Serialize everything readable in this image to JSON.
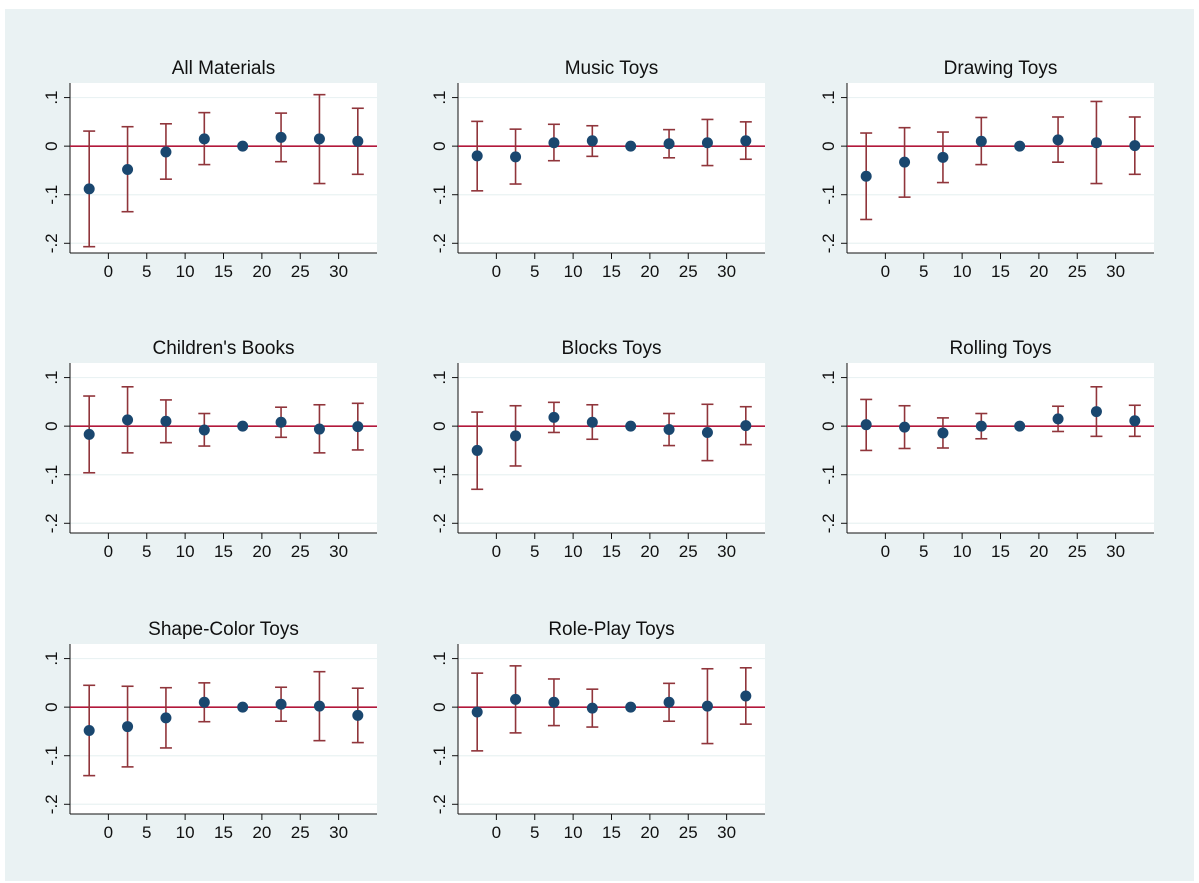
{
  "colors": {
    "background": "#eaf2f3",
    "plot_area": "#ffffff",
    "marker": "#1a476f",
    "error_bar": "#90353b",
    "zero_line": "#b2183b",
    "grid": "#eaf2f3"
  },
  "chart_data": [
    {
      "type": "scatter",
      "title": "All Materials",
      "x": [
        -2.5,
        2.5,
        7.5,
        12.5,
        17.5,
        22.5,
        27.5,
        32.5
      ],
      "y": [
        -0.088,
        -0.048,
        -0.012,
        0.015,
        0.0,
        0.018,
        0.015,
        0.01
      ],
      "ci_low": [
        -0.207,
        -0.135,
        -0.068,
        -0.038,
        0.0,
        -0.032,
        -0.077,
        -0.058
      ],
      "ci_high": [
        0.031,
        0.04,
        0.046,
        0.069,
        0.0,
        0.068,
        0.106,
        0.078
      ],
      "xlim": [
        -5,
        35
      ],
      "ylim": [
        -0.22,
        0.13
      ],
      "xticks": [
        "0",
        "5",
        "10",
        "15",
        "20",
        "25",
        "30"
      ],
      "yticks": [
        "-.2",
        "-.1",
        "0",
        ".1"
      ],
      "zero_line": true,
      "grid": true
    },
    {
      "type": "scatter",
      "title": "Music Toys",
      "x": [
        -2.5,
        2.5,
        7.5,
        12.5,
        17.5,
        22.5,
        27.5,
        32.5
      ],
      "y": [
        -0.02,
        -0.022,
        0.007,
        0.011,
        0.0,
        0.005,
        0.007,
        0.011
      ],
      "ci_low": [
        -0.092,
        -0.078,
        -0.03,
        -0.021,
        0.0,
        -0.024,
        -0.04,
        -0.027
      ],
      "ci_high": [
        0.051,
        0.035,
        0.045,
        0.042,
        0.0,
        0.034,
        0.055,
        0.05
      ],
      "xlim": [
        -5,
        35
      ],
      "ylim": [
        -0.22,
        0.13
      ],
      "xticks": [
        "0",
        "5",
        "10",
        "15",
        "20",
        "25",
        "30"
      ],
      "yticks": [
        "-.2",
        "-.1",
        "0",
        ".1"
      ],
      "zero_line": true,
      "grid": true
    },
    {
      "type": "scatter",
      "title": "Drawing Toys",
      "x": [
        -2.5,
        2.5,
        7.5,
        12.5,
        17.5,
        22.5,
        27.5,
        32.5
      ],
      "y": [
        -0.062,
        -0.033,
        -0.023,
        0.01,
        0.0,
        0.013,
        0.007,
        0.001
      ],
      "ci_low": [
        -0.151,
        -0.105,
        -0.075,
        -0.038,
        0.0,
        -0.033,
        -0.077,
        -0.058
      ],
      "ci_high": [
        0.027,
        0.038,
        0.029,
        0.059,
        0.0,
        0.06,
        0.092,
        0.06
      ],
      "xlim": [
        -5,
        35
      ],
      "ylim": [
        -0.22,
        0.13
      ],
      "xticks": [
        "0",
        "5",
        "10",
        "15",
        "20",
        "25",
        "30"
      ],
      "yticks": [
        "-.2",
        "-.1",
        "0",
        ".1"
      ],
      "zero_line": true,
      "grid": true
    },
    {
      "type": "scatter",
      "title": "Children's Books",
      "x": [
        -2.5,
        2.5,
        7.5,
        12.5,
        17.5,
        22.5,
        27.5,
        32.5
      ],
      "y": [
        -0.017,
        0.013,
        0.01,
        -0.008,
        0.0,
        0.008,
        -0.006,
        -0.001
      ],
      "ci_low": [
        -0.096,
        -0.055,
        -0.034,
        -0.041,
        0.0,
        -0.023,
        -0.055,
        -0.049
      ],
      "ci_high": [
        0.062,
        0.081,
        0.054,
        0.026,
        0.0,
        0.039,
        0.044,
        0.047
      ],
      "xlim": [
        -5,
        35
      ],
      "ylim": [
        -0.22,
        0.13
      ],
      "xticks": [
        "0",
        "5",
        "10",
        "15",
        "20",
        "25",
        "30"
      ],
      "yticks": [
        "-.2",
        "-.1",
        "0",
        ".1"
      ],
      "zero_line": true,
      "grid": true
    },
    {
      "type": "scatter",
      "title": "Blocks Toys",
      "x": [
        -2.5,
        2.5,
        7.5,
        12.5,
        17.5,
        22.5,
        27.5,
        32.5
      ],
      "y": [
        -0.05,
        -0.02,
        0.018,
        0.008,
        0.0,
        -0.007,
        -0.013,
        0.001
      ],
      "ci_low": [
        -0.13,
        -0.082,
        -0.013,
        -0.027,
        0.0,
        -0.04,
        -0.071,
        -0.038
      ],
      "ci_high": [
        0.029,
        0.042,
        0.049,
        0.044,
        0.0,
        0.026,
        0.045,
        0.04
      ],
      "xlim": [
        -5,
        35
      ],
      "ylim": [
        -0.22,
        0.13
      ],
      "xticks": [
        "0",
        "5",
        "10",
        "15",
        "20",
        "25",
        "30"
      ],
      "yticks": [
        "-.2",
        "-.1",
        "0",
        ".1"
      ],
      "zero_line": true,
      "grid": true
    },
    {
      "type": "scatter",
      "title": "Rolling Toys",
      "x": [
        -2.5,
        2.5,
        7.5,
        12.5,
        17.5,
        22.5,
        27.5,
        32.5
      ],
      "y": [
        0.003,
        -0.002,
        -0.014,
        0.0,
        0.0,
        0.015,
        0.03,
        0.011
      ],
      "ci_low": [
        -0.05,
        -0.046,
        -0.045,
        -0.026,
        0.0,
        -0.011,
        -0.021,
        -0.021
      ],
      "ci_high": [
        0.055,
        0.042,
        0.017,
        0.026,
        0.0,
        0.041,
        0.081,
        0.043
      ],
      "xlim": [
        -5,
        35
      ],
      "ylim": [
        -0.22,
        0.13
      ],
      "xticks": [
        "0",
        "5",
        "10",
        "15",
        "20",
        "25",
        "30"
      ],
      "yticks": [
        "-.2",
        "-.1",
        "0",
        ".1"
      ],
      "zero_line": true,
      "grid": true
    },
    {
      "type": "scatter",
      "title": "Shape-Color Toys",
      "x": [
        -2.5,
        2.5,
        7.5,
        12.5,
        17.5,
        22.5,
        27.5,
        32.5
      ],
      "y": [
        -0.048,
        -0.04,
        -0.022,
        0.01,
        0.0,
        0.006,
        0.002,
        -0.017
      ],
      "ci_low": [
        -0.141,
        -0.123,
        -0.084,
        -0.03,
        0.0,
        -0.029,
        -0.069,
        -0.073
      ],
      "ci_high": [
        0.045,
        0.043,
        0.04,
        0.05,
        0.0,
        0.041,
        0.073,
        0.039
      ],
      "xlim": [
        -5,
        35
      ],
      "ylim": [
        -0.22,
        0.13
      ],
      "xticks": [
        "0",
        "5",
        "10",
        "15",
        "20",
        "25",
        "30"
      ],
      "yticks": [
        "-.2",
        "-.1",
        "0",
        ".1"
      ],
      "zero_line": true,
      "grid": true
    },
    {
      "type": "scatter",
      "title": "Role-Play Toys",
      "x": [
        -2.5,
        2.5,
        7.5,
        12.5,
        17.5,
        22.5,
        27.5,
        32.5
      ],
      "y": [
        -0.01,
        0.016,
        0.01,
        -0.002,
        0.0,
        0.01,
        0.002,
        0.023
      ],
      "ci_low": [
        -0.09,
        -0.053,
        -0.038,
        -0.041,
        0.0,
        -0.029,
        -0.075,
        -0.035
      ],
      "ci_high": [
        0.07,
        0.085,
        0.058,
        0.037,
        0.0,
        0.049,
        0.079,
        0.081
      ],
      "xlim": [
        -5,
        35
      ],
      "ylim": [
        -0.22,
        0.13
      ],
      "xticks": [
        "0",
        "5",
        "10",
        "15",
        "20",
        "25",
        "30"
      ],
      "yticks": [
        "-.2",
        "-.1",
        "0",
        ".1"
      ],
      "zero_line": true,
      "grid": true
    }
  ]
}
